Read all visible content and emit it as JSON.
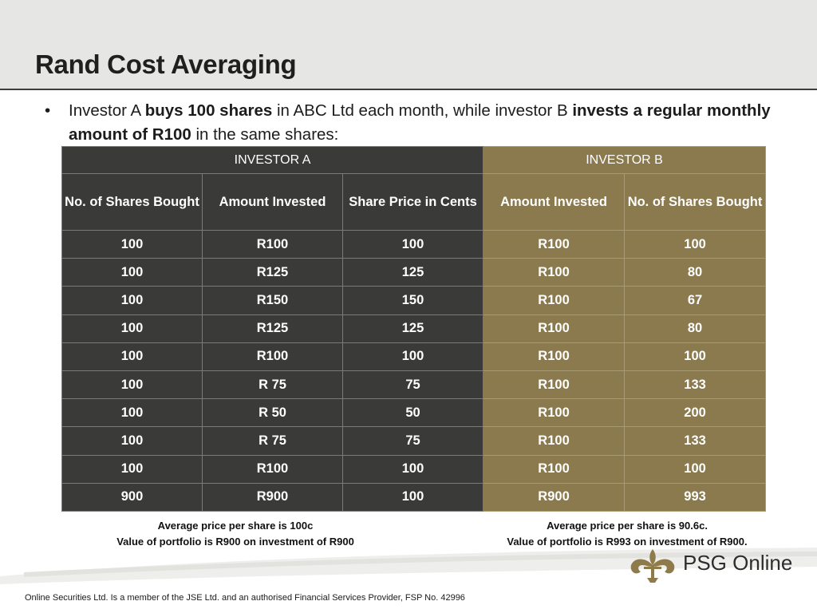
{
  "slide": {
    "title": "Rand Cost Averaging",
    "bullet": {
      "symbol": "•",
      "text_1": "Investor A ",
      "bold_1": "buys 100 shares",
      "text_2": " in ABC Ltd each month, while investor B ",
      "bold_2": "invests a regular monthly amount of R100",
      "text_3": " in the same shares:"
    }
  },
  "table": {
    "group_a": "INVESTOR A",
    "group_b": "INVESTOR B",
    "columns": [
      "No. of Shares Bought",
      "Amount Invested",
      "Share Price in Cents",
      "Amount Invested",
      "No. of Shares Bought"
    ],
    "rows": [
      [
        "100",
        "R100",
        "100",
        "R100",
        "100"
      ],
      [
        "100",
        "R125",
        "125",
        "R100",
        "80"
      ],
      [
        "100",
        "R150",
        "150",
        "R100",
        "67"
      ],
      [
        "100",
        "R125",
        "125",
        "R100",
        "80"
      ],
      [
        "100",
        "R100",
        "100",
        "R100",
        "100"
      ],
      [
        "100",
        "R 75",
        "75",
        "R100",
        "133"
      ],
      [
        "100",
        "R 50",
        "50",
        "R100",
        "200"
      ],
      [
        "100",
        "R 75",
        "75",
        "R100",
        "133"
      ],
      [
        "100",
        "R100",
        "100",
        "R100",
        "100"
      ],
      [
        "900",
        "R900",
        "100",
        "R900",
        "993"
      ]
    ]
  },
  "notes": {
    "a_line1": "Average price per share is 100c",
    "a_line2": "Value  of portfolio is R900 on investment of R900",
    "b_line1": "Average price per share is 90.6c.",
    "b_line2": "Value of portfolio is R993 on investment of R900."
  },
  "logo": {
    "text": "PSG Online",
    "icon": "psg-fleur-emblem-icon"
  },
  "footer": "Online Securities Ltd. Is a member of the JSE Ltd. and an authorised Financial Services Provider, FSP No. 42996",
  "colors": {
    "investor_a": "#3a3a38",
    "investor_b": "#8a7a4e",
    "header_band": "#e6e6e4",
    "logo_gold": "#8f7a4a"
  }
}
